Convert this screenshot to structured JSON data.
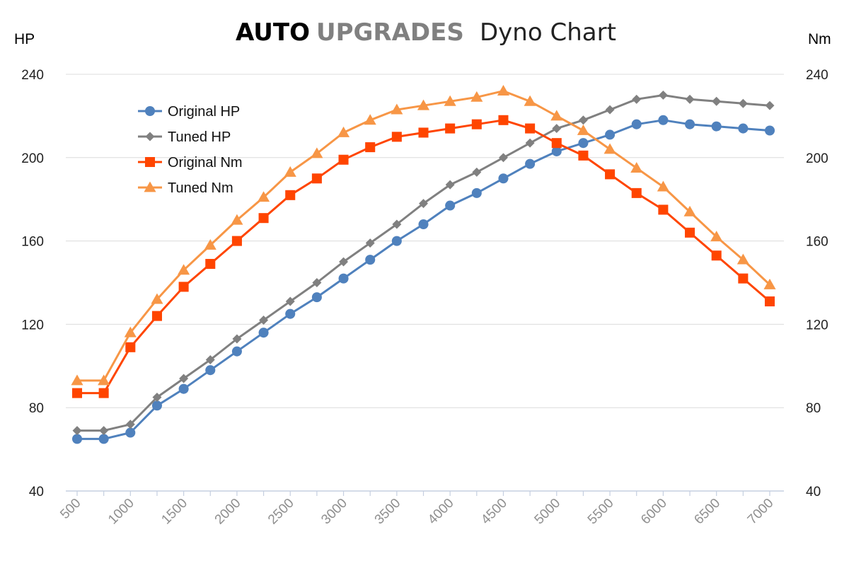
{
  "header": {
    "brand_primary": "AUTO",
    "brand_secondary": "UPGRADES",
    "title": "Dyno Chart"
  },
  "chart_data": {
    "type": "line",
    "left_axis": {
      "unit_label": "HP",
      "ticks": [
        40,
        80,
        120,
        160,
        200,
        240
      ],
      "range": [
        40,
        240
      ]
    },
    "right_axis": {
      "unit_label": "Nm",
      "ticks": [
        40,
        80,
        120,
        160,
        200,
        240
      ],
      "range": [
        40,
        240
      ]
    },
    "x": [
      500,
      750,
      1000,
      1250,
      1500,
      1750,
      2000,
      2250,
      2500,
      2750,
      3000,
      3250,
      3500,
      3750,
      4000,
      4250,
      4500,
      4750,
      5000,
      5250,
      5500,
      5750,
      6000,
      6250,
      6500,
      6750,
      7000
    ],
    "x_tick_labels": [
      "500",
      "1000",
      "1500",
      "2000",
      "2500",
      "3000",
      "3500",
      "4000",
      "4500",
      "5000",
      "5500",
      "6000",
      "6500",
      "7000"
    ],
    "grid": "horizontal",
    "legend_position": "top-left",
    "series": [
      {
        "name": "Original HP",
        "axis": "left",
        "color": "#4f81bd",
        "marker": "circle",
        "values": [
          65,
          65,
          68,
          81,
          89,
          98,
          107,
          116,
          125,
          133,
          142,
          151,
          160,
          168,
          177,
          183,
          190,
          197,
          203,
          207,
          211,
          216,
          218,
          216,
          215,
          214,
          213
        ]
      },
      {
        "name": "Tuned HP",
        "axis": "left",
        "color": "#808080",
        "marker": "diamond",
        "values": [
          69,
          69,
          72,
          85,
          94,
          103,
          113,
          122,
          131,
          140,
          150,
          159,
          168,
          178,
          187,
          193,
          200,
          207,
          214,
          218,
          223,
          228,
          230,
          228,
          227,
          226,
          225
        ]
      },
      {
        "name": "Original Nm",
        "axis": "right",
        "color": "#ff4500",
        "marker": "square",
        "values": [
          87,
          87,
          109,
          124,
          138,
          149,
          160,
          171,
          182,
          190,
          199,
          205,
          210,
          212,
          214,
          216,
          218,
          214,
          207,
          201,
          192,
          183,
          175,
          164,
          153,
          142,
          131
        ]
      },
      {
        "name": "Tuned Nm",
        "axis": "right",
        "color": "#f79646",
        "marker": "triangle",
        "values": [
          93,
          93,
          116,
          132,
          146,
          158,
          170,
          181,
          193,
          202,
          212,
          218,
          223,
          225,
          227,
          229,
          232,
          227,
          220,
          213,
          204,
          195,
          186,
          174,
          162,
          151,
          139
        ]
      }
    ]
  }
}
